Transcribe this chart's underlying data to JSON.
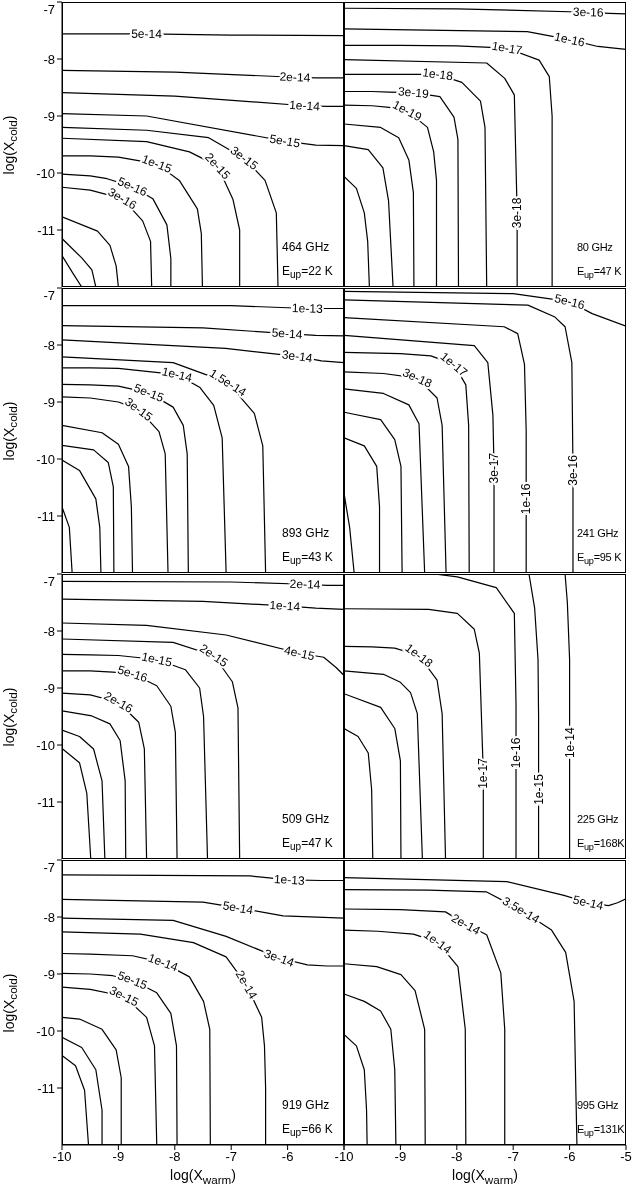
{
  "chart_data": [
    {
      "type": "line",
      "color": "#000000",
      "xlim": [
        -10,
        -5
      ],
      "ylim": [
        -12,
        -7
      ],
      "xticks": [
        -10,
        -9,
        -8,
        -7,
        -6,
        -5
      ],
      "yticks": [
        -11,
        -10,
        -9,
        -8,
        -7
      ],
      "tick_labels": "y",
      "ylabel": "log(X$_{cold}$)",
      "annotations": [
        "464 GHz",
        "E$_{up}$=22 K"
      ],
      "series": [
        {
          "name": "5e-14",
          "x": [
            -10,
            -9,
            -8.5,
            -7,
            -5
          ],
          "values": [
            -7.56,
            -7.56,
            -7.56,
            -7.58,
            -7.59
          ]
        },
        {
          "name": "2e-14",
          "x": [
            -10,
            -8,
            -5.87,
            -5.5,
            -5
          ],
          "values": [
            -8.2,
            -8.23,
            -8.32,
            -8.33,
            -8.33
          ]
        },
        {
          "name": "1e-14",
          "x": [
            -10,
            -8,
            -5.7,
            -5.3,
            -5
          ],
          "values": [
            -8.59,
            -8.65,
            -8.82,
            -8.83,
            -8.83
          ]
        },
        {
          "name": "5e-15",
          "x": [
            -10,
            -8.5,
            -6.05,
            -5.5,
            -5
          ],
          "values": [
            -8.96,
            -9.0,
            -9.44,
            -9.51,
            -9.52
          ]
        },
        {
          "name": "3e-15",
          "x": [
            -10,
            -8.5,
            -7.4,
            -6.77,
            -6.4,
            -6.2,
            -6.17
          ],
          "values": [
            -9.2,
            -9.25,
            -9.38,
            -9.74,
            -10.13,
            -10.7,
            -12
          ]
        },
        {
          "name": "2e-15",
          "x": [
            -10,
            -8.5,
            -7.74,
            -7.24,
            -6.97,
            -6.85,
            -6.85
          ],
          "values": [
            -9.39,
            -9.45,
            -9.63,
            -9.88,
            -10.46,
            -11.0,
            -12
          ]
        },
        {
          "name": "1e-15",
          "x": [
            -10,
            -9.5,
            -9,
            -8.32,
            -7.92,
            -7.6,
            -7.53,
            -7.51
          ],
          "values": [
            -9.7,
            -9.7,
            -9.72,
            -9.84,
            -10.13,
            -10.63,
            -11.06,
            -12
          ]
        },
        {
          "name": "5e-16",
          "x": [
            -10,
            -9.5,
            -9.2,
            -8.75,
            -8.39,
            -8.14,
            -8.07,
            -8.07
          ],
          "values": [
            -10.02,
            -10.05,
            -10.1,
            -10.24,
            -10.45,
            -10.91,
            -11.5,
            -12
          ]
        },
        {
          "name": "3e-16",
          "x": [
            -10,
            -9.5,
            -8.93,
            -8.57,
            -8.43,
            -8.41
          ],
          "values": [
            -10.25,
            -10.3,
            -10.45,
            -10.84,
            -11.2,
            -12
          ]
        },
        {
          "x": [
            -10,
            -9.37,
            -9.15,
            -9.04,
            -9.0
          ],
          "values": [
            -10.77,
            -11.02,
            -11.27,
            -11.63,
            -12
          ]
        },
        {
          "x": [
            -10,
            -9.65,
            -9.47,
            -9.4
          ],
          "values": [
            -11.15,
            -11.49,
            -11.7,
            -12
          ]
        },
        {
          "x": [
            -10,
            -9.8,
            -9.65
          ],
          "values": [
            -11.45,
            -11.77,
            -12
          ]
        }
      ]
    },
    {
      "type": "line",
      "color": "#000000",
      "xlim": [
        -10,
        -5
      ],
      "ylim": [
        -12,
        -7
      ],
      "xticks": [
        -10,
        -9,
        -8,
        -7,
        -6,
        -5
      ],
      "yticks": [
        -11,
        -10,
        -9,
        -8,
        -7
      ],
      "tick_labels": false,
      "annotations": [
        "80 GHz",
        "E$_{up}$=47 K"
      ],
      "series": [
        {
          "name": "3e-16",
          "x": [
            -10,
            -8,
            -5.67,
            -5.3,
            -5
          ],
          "values": [
            -7.11,
            -7.12,
            -7.18,
            -7.2,
            -7.21
          ]
        },
        {
          "name": "1e-16",
          "x": [
            -10,
            -6.75,
            -6.0,
            -5.5,
            -5
          ],
          "values": [
            -7.47,
            -7.52,
            -7.66,
            -7.78,
            -7.83
          ]
        },
        {
          "name": "1e-17",
          "x": [
            -10,
            -9,
            -8,
            -7.11,
            -6.54,
            -6.36,
            -6.31,
            -6.31
          ],
          "values": [
            -7.76,
            -7.76,
            -7.77,
            -7.81,
            -8.02,
            -8.31,
            -9,
            -12
          ]
        },
        {
          "name": "3e-18",
          "x": [
            -10,
            -7.47,
            -7.15,
            -6.98,
            -6.93,
            -6.93,
            -6.93,
            -6.93,
            -6.93
          ],
          "values": [
            -8.01,
            -8.07,
            -8.34,
            -8.63,
            -10.7,
            -11.1,
            -11.4,
            -11.7,
            -12
          ]
        },
        {
          "name": "1e-18",
          "x": [
            -10,
            -9.5,
            -9,
            -8.34,
            -7.91,
            -7.58,
            -7.5,
            -7.47
          ],
          "values": [
            -8.27,
            -8.27,
            -8.27,
            -8.27,
            -8.41,
            -8.74,
            -9.2,
            -12
          ]
        },
        {
          "name": "3e-19",
          "x": [
            -10,
            -9.5,
            -9.2,
            -8.77,
            -8.3,
            -8.05,
            -7.98,
            -7.97
          ],
          "values": [
            -8.57,
            -8.57,
            -8.58,
            -8.59,
            -8.66,
            -9.02,
            -9.41,
            -12
          ]
        },
        {
          "name": "1e-19",
          "x": [
            -10,
            -9.5,
            -9.2,
            -8.88,
            -8.52,
            -8.41,
            -8.36,
            -8.36
          ],
          "values": [
            -8.81,
            -8.82,
            -8.85,
            -8.91,
            -9.2,
            -9.63,
            -10.13,
            -12
          ]
        },
        {
          "x": [
            -10,
            -9.35,
            -9.03,
            -8.85,
            -8.77,
            -8.76
          ],
          "values": [
            -9.14,
            -9.2,
            -9.38,
            -9.77,
            -10.34,
            -12
          ]
        },
        {
          "x": [
            -10,
            -9.57,
            -9.31,
            -9.21,
            -9.13
          ],
          "values": [
            -9.52,
            -9.59,
            -9.91,
            -10.49,
            -12
          ]
        },
        {
          "x": [
            -10,
            -9.78,
            -9.64,
            -9.58,
            -9.55
          ],
          "values": [
            -10.06,
            -10.27,
            -10.7,
            -11.2,
            -12
          ]
        }
      ]
    },
    {
      "type": "line",
      "color": "#000000",
      "xlim": [
        -10,
        -5
      ],
      "ylim": [
        -12,
        -7
      ],
      "xticks": [
        -10,
        -9,
        -8,
        -7,
        -6,
        -5
      ],
      "yticks": [
        -11,
        -10,
        -9,
        -8,
        -7
      ],
      "tick_labels": "y",
      "ylabel": "log(X$_{cold}$)",
      "annotations": [
        "893 GHz",
        "E$_{up}$=43 K"
      ],
      "series": [
        {
          "name": "1e-13",
          "x": [
            -10,
            -7,
            -5.65,
            -5.3,
            -5
          ],
          "values": [
            -7.31,
            -7.31,
            -7.36,
            -7.36,
            -7.36
          ]
        },
        {
          "name": "5e-14",
          "x": [
            -10,
            -7.5,
            -6.01,
            -5.5,
            -5
          ],
          "values": [
            -7.66,
            -7.7,
            -7.8,
            -7.83,
            -7.84
          ]
        },
        {
          "name": "3e-14",
          "x": [
            -10,
            -7.1,
            -5.83,
            -5.4,
            -5
          ],
          "values": [
            -7.91,
            -8.06,
            -8.2,
            -8.28,
            -8.31
          ]
        },
        {
          "name": "1.5e-14",
          "x": [
            -10,
            -8.03,
            -7.06,
            -6.59,
            -6.44,
            -6.39
          ],
          "values": [
            -8.21,
            -8.31,
            -8.66,
            -9.2,
            -9.77,
            -12
          ]
        },
        {
          "name": "1e-14",
          "x": [
            -10,
            -9.5,
            -9,
            -7.96,
            -7.56,
            -7.31,
            -7.16,
            -7.09
          ],
          "values": [
            -8.4,
            -8.4,
            -8.41,
            -8.52,
            -8.74,
            -9.06,
            -9.63,
            -12
          ]
        },
        {
          "name": "5e-15",
          "x": [
            -10,
            -9.5,
            -9,
            -8.46,
            -8.03,
            -7.85,
            -7.78,
            -7.76
          ],
          "values": [
            -8.69,
            -8.7,
            -8.72,
            -8.84,
            -9.09,
            -9.41,
            -9.91,
            -12
          ]
        },
        {
          "name": "3e-15",
          "x": [
            -10,
            -9.5,
            -9,
            -8.64,
            -8.28,
            -8.17,
            -8.12
          ],
          "values": [
            -8.91,
            -8.93,
            -9.0,
            -9.13,
            -9.52,
            -9.91,
            -12
          ]
        },
        {
          "x": [
            -10,
            -9.29,
            -9.0,
            -8.82,
            -8.77,
            -8.75
          ],
          "values": [
            -9.41,
            -9.54,
            -9.74,
            -10.13,
            -10.84,
            -12
          ]
        },
        {
          "x": [
            -10,
            -9.44,
            -9.18,
            -9.09,
            -9.08
          ],
          "values": [
            -9.76,
            -9.84,
            -10.06,
            -10.49,
            -12
          ]
        },
        {
          "x": [
            -10,
            -9.69,
            -9.4,
            -9.33,
            -9.31
          ],
          "values": [
            -10.02,
            -10.2,
            -10.7,
            -11.2,
            -12
          ]
        },
        {
          "x": [
            -10,
            -9.87,
            -9.82
          ],
          "values": [
            -10.84,
            -11.2,
            -12
          ]
        }
      ]
    },
    {
      "type": "line",
      "color": "#000000",
      "xlim": [
        -10,
        -5
      ],
      "ylim": [
        -12,
        -7
      ],
      "xticks": [
        -10,
        -9,
        -8,
        -7,
        -6,
        -5
      ],
      "yticks": [
        -11,
        -10,
        -9,
        -8,
        -7
      ],
      "tick_labels": false,
      "annotations": [
        "241 GHz",
        "E$_{up}$=95 K"
      ],
      "series": [
        {
          "name": "5e-16",
          "x": [
            -10,
            -7.0,
            -6.0,
            -5.6,
            -5
          ],
          "values": [
            -7.06,
            -7.1,
            -7.24,
            -7.45,
            -7.67
          ]
        },
        {
          "name": "3e-16",
          "x": [
            -10,
            -6.74,
            -6.26,
            -6.08,
            -5.96,
            -5.94,
            -5.94,
            -5.94,
            -5.94,
            -5.94,
            -5.94
          ],
          "values": [
            -7.21,
            -7.3,
            -7.51,
            -7.68,
            -8.31,
            -10.2,
            -10.6,
            -11,
            -11.4,
            -11.7,
            -12
          ]
        },
        {
          "name": "1e-16",
          "x": [
            -10,
            -7.16,
            -6.92,
            -6.8,
            -6.77,
            -6.77,
            -6.77,
            -6.77,
            -6.77,
            -6.77,
            -6.77
          ],
          "values": [
            -7.52,
            -7.68,
            -7.8,
            -8.34,
            -9.5,
            -10.7,
            -11,
            -11.3,
            -11.55,
            -11.8,
            -12
          ]
        },
        {
          "name": "3e-17",
          "x": [
            -10,
            -7.69,
            -7.45,
            -7.36,
            -7.34,
            -7.34,
            -7.34,
            -7.34,
            -7.34
          ],
          "values": [
            -7.83,
            -8.01,
            -8.31,
            -9.23,
            -10.16,
            -10.6,
            -11.1,
            -11.5,
            -12
          ]
        },
        {
          "name": "1e-17",
          "x": [
            -10,
            -9,
            -8.46,
            -8.05,
            -7.84,
            -7.79,
            -7.78
          ],
          "values": [
            -8.13,
            -8.15,
            -8.19,
            -8.34,
            -8.7,
            -9.41,
            -12
          ]
        },
        {
          "name": "3e-18",
          "x": [
            -10,
            -9.3,
            -8.7,
            -8.35,
            -8.26,
            -8.19
          ],
          "values": [
            -8.47,
            -8.5,
            -8.58,
            -8.93,
            -9.41,
            -12
          ]
        },
        {
          "x": [
            -10,
            -9.3,
            -8.85,
            -8.67,
            -8.57
          ],
          "values": [
            -8.77,
            -8.85,
            -9.05,
            -9.38,
            -12
          ]
        },
        {
          "x": [
            -10,
            -9.35,
            -9.1,
            -8.99,
            -8.97
          ],
          "values": [
            -9.18,
            -9.31,
            -9.66,
            -10.13,
            -12
          ]
        },
        {
          "x": [
            -10,
            -9.64,
            -9.42,
            -9.37,
            -9.37
          ],
          "values": [
            -9.63,
            -9.77,
            -10.13,
            -10.84,
            -12
          ]
        },
        {
          "x": [
            -10,
            -9.9,
            -9.82
          ],
          "values": [
            -10.6,
            -11.2,
            -12
          ]
        }
      ]
    },
    {
      "type": "line",
      "color": "#000000",
      "xlim": [
        -10,
        -5
      ],
      "ylim": [
        -12,
        -7
      ],
      "xticks": [
        -10,
        -9,
        -8,
        -7,
        -6,
        -5
      ],
      "yticks": [
        -11,
        -10,
        -9,
        -8,
        -7
      ],
      "tick_labels": "y",
      "ylabel": "log(X$_{cold}$)",
      "annotations": [
        "509 GHz",
        "E$_{up}$=47 K"
      ],
      "series": [
        {
          "name": "2e-14",
          "x": [
            -10,
            -7,
            -5.69,
            -5.3,
            -5
          ],
          "values": [
            -7.13,
            -7.14,
            -7.18,
            -7.2,
            -7.2
          ]
        },
        {
          "name": "1e-14",
          "x": [
            -10,
            -7.5,
            -6.05,
            -5.5,
            -5
          ],
          "values": [
            -7.44,
            -7.48,
            -7.56,
            -7.6,
            -7.62
          ]
        },
        {
          "name": "4e-15",
          "x": [
            -10,
            -8.5,
            -7.09,
            -5.79,
            -5.36,
            -5.14,
            -5
          ],
          "values": [
            -7.86,
            -7.9,
            -8.07,
            -8.39,
            -8.46,
            -8.64,
            -8.78
          ]
        },
        {
          "name": "2e-15",
          "x": [
            -10,
            -8.03,
            -7.31,
            -6.98,
            -6.88,
            -6.85
          ],
          "values": [
            -8.14,
            -8.2,
            -8.43,
            -8.89,
            -9.35,
            -12
          ]
        },
        {
          "name": "1e-15",
          "x": [
            -10,
            -9.5,
            -9,
            -8.32,
            -7.81,
            -7.56,
            -7.49,
            -7.42
          ],
          "values": [
            -8.41,
            -8.42,
            -8.43,
            -8.5,
            -8.68,
            -9.0,
            -9.5,
            -12
          ]
        },
        {
          "name": "5e-16",
          "x": [
            -10,
            -9.5,
            -9.1,
            -8.75,
            -8.32,
            -8.07,
            -7.99,
            -7.96
          ],
          "values": [
            -8.7,
            -8.7,
            -8.72,
            -8.75,
            -8.96,
            -9.32,
            -9.78,
            -12
          ]
        },
        {
          "name": "2e-16",
          "x": [
            -10,
            -9.5,
            -9.0,
            -8.64,
            -8.54,
            -8.5
          ],
          "values": [
            -9.09,
            -9.12,
            -9.25,
            -9.6,
            -10.07,
            -12
          ]
        },
        {
          "x": [
            -10,
            -9.47,
            -9.15,
            -8.97,
            -8.88,
            -8.87
          ],
          "values": [
            -9.4,
            -9.49,
            -9.63,
            -9.92,
            -10.63,
            -12
          ]
        },
        {
          "x": [
            -10,
            -9.69,
            -9.44,
            -9.29,
            -9.24
          ],
          "values": [
            -9.74,
            -9.85,
            -10.07,
            -10.63,
            -12
          ]
        },
        {
          "x": [
            -10,
            -9.69,
            -9.56,
            -9.49
          ],
          "values": [
            -10.06,
            -10.31,
            -10.85,
            -12
          ]
        }
      ]
    },
    {
      "type": "line",
      "color": "#000000",
      "xlim": [
        -10,
        -5
      ],
      "ylim": [
        -12,
        -7
      ],
      "xticks": [
        -10,
        -9,
        -8,
        -7,
        -6,
        -5
      ],
      "yticks": [
        -11,
        -10,
        -9,
        -8,
        -7
      ],
      "tick_labels": false,
      "annotations": [
        "225 GHz",
        "E$_{up}$=168K"
      ],
      "series": [
        {
          "name": "1e-14",
          "x": [
            -6.08,
            -6.04,
            -6.0,
            -6.0,
            -6.0,
            -6.0,
            -6.0
          ],
          "values": [
            -7,
            -7.5,
            -8.5,
            -9.96,
            -10.6,
            -11.3,
            -12
          ]
        },
        {
          "name": "1e-15",
          "x": [
            -6.72,
            -6.62,
            -6.56,
            -6.55,
            -6.55,
            -6.55,
            -6.55,
            -6.55,
            -6.55
          ],
          "values": [
            -7,
            -7.6,
            -8.5,
            -9.5,
            -10.78,
            -11.1,
            -11.4,
            -11.7,
            -12
          ]
        },
        {
          "name": "1e-16",
          "x": [
            -8.4,
            -7.99,
            -7.3,
            -6.98,
            -6.95,
            -6.95,
            -6.95,
            -6.95,
            -6.95,
            -6.95,
            -6.95
          ],
          "values": [
            -7,
            -7.05,
            -7.24,
            -7.69,
            -9.29,
            -10.14,
            -10.6,
            -11,
            -11.4,
            -11.7,
            -12
          ]
        },
        {
          "name": "1e-17",
          "x": [
            -10,
            -8.5,
            -7.99,
            -7.69,
            -7.6,
            -7.53,
            -7.53,
            -7.53,
            -7.53,
            -7.53,
            -7.53
          ],
          "values": [
            -7.61,
            -7.62,
            -7.69,
            -7.97,
            -8.39,
            -10.5,
            -10.9,
            -11.2,
            -11.5,
            -11.8,
            -12
          ]
        },
        {
          "name": "1e-18",
          "x": [
            -10,
            -9.5,
            -9.1,
            -8.67,
            -8.35,
            -8.26,
            -8.2
          ],
          "values": [
            -8.27,
            -8.28,
            -8.3,
            -8.43,
            -8.86,
            -9.45,
            -12
          ]
        },
        {
          "x": [
            -10,
            -9.3,
            -9.0,
            -8.82,
            -8.7,
            -8.61
          ],
          "values": [
            -8.7,
            -8.76,
            -8.9,
            -9.08,
            -9.45,
            -12
          ]
        },
        {
          "x": [
            -10,
            -9.35,
            -9.1,
            -9.0,
            -8.99
          ],
          "values": [
            -9.1,
            -9.34,
            -9.71,
            -10.28,
            -12
          ]
        },
        {
          "x": [
            -10,
            -9.75,
            -9.57,
            -9.51,
            -9.49
          ],
          "values": [
            -9.71,
            -9.85,
            -10.14,
            -10.78,
            -12
          ]
        }
      ]
    },
    {
      "type": "line",
      "color": "#000000",
      "xlim": [
        -10,
        -5
      ],
      "ylim": [
        -12,
        -7
      ],
      "xticks": [
        -10,
        -9,
        -8,
        -7,
        -6,
        {
          "value": -5,
          "label": null
        }
      ],
      "yticks": [
        -11,
        -10,
        -9,
        -8,
        -7
      ],
      "xlabel": "log(X$_{warm}$)",
      "ylabel": "log(X$_{cold}$)",
      "annotations": [
        "919 GHz",
        "E$_{up}$=66 K"
      ],
      "series": [
        {
          "name": "1e-13",
          "x": [
            -10,
            -6.66,
            -5.97,
            -5.4,
            -5
          ],
          "values": [
            -7.26,
            -7.28,
            -7.35,
            -7.36,
            -7.36
          ]
        },
        {
          "name": "5e-14",
          "x": [
            -10,
            -7.5,
            -6.88,
            -6.08,
            -5
          ],
          "values": [
            -7.69,
            -7.74,
            -7.84,
            -7.98,
            -8.02
          ]
        },
        {
          "name": "3e-14",
          "x": [
            -10,
            -8.03,
            -7.09,
            -6.15,
            -5.65,
            -5.3,
            -5
          ],
          "values": [
            -8.02,
            -8.06,
            -8.34,
            -8.72,
            -8.84,
            -8.86,
            -8.86
          ]
        },
        {
          "name": "2e-14",
          "x": [
            -10,
            -8.61,
            -7.67,
            -7.09,
            -6.73,
            -6.46,
            -6.41,
            -6.39,
            -6.39
          ],
          "values": [
            -8.26,
            -8.3,
            -8.45,
            -8.7,
            -9.19,
            -9.76,
            -10.26,
            -11,
            -12
          ]
        },
        {
          "name": "1e-14",
          "x": [
            -10,
            -9.5,
            -8.75,
            -8.21,
            -7.74,
            -7.49,
            -7.38,
            -7.37
          ],
          "values": [
            -8.64,
            -8.65,
            -8.68,
            -8.8,
            -9.05,
            -9.48,
            -9.97,
            -12
          ]
        },
        {
          "name": "5e-15",
          "x": [
            -10,
            -9.5,
            -9.1,
            -8.75,
            -8.32,
            -8.07,
            -7.97,
            -7.96
          ],
          "values": [
            -8.99,
            -9.0,
            -9.03,
            -9.11,
            -9.33,
            -9.69,
            -10.26,
            -12
          ]
        },
        {
          "name": "3e-15",
          "x": [
            -10,
            -9.5,
            -8.9,
            -8.5,
            -8.36,
            -8.32
          ],
          "values": [
            -9.23,
            -9.27,
            -9.39,
            -9.76,
            -10.26,
            -12
          ]
        },
        {
          "x": [
            -10,
            -9.69,
            -9.29,
            -9.04,
            -8.95,
            -8.95
          ],
          "values": [
            -9.76,
            -9.79,
            -9.97,
            -10.33,
            -10.82,
            -12
          ]
        },
        {
          "x": [
            -10,
            -9.65,
            -9.4,
            -9.29,
            -9.29
          ],
          "values": [
            -10.11,
            -10.29,
            -10.68,
            -11.39,
            -12
          ]
        },
        {
          "x": [
            -10,
            -9.76,
            -9.6,
            -9.53
          ],
          "values": [
            -10.43,
            -10.61,
            -11.04,
            -12
          ]
        }
      ]
    },
    {
      "type": "line",
      "color": "#000000",
      "xlim": [
        -10,
        -5
      ],
      "ylim": [
        -12,
        -7
      ],
      "xticks": [
        -10,
        -9,
        -8,
        -7,
        -6,
        -5
      ],
      "yticks": [
        -11,
        -10,
        -9,
        -8,
        -7
      ],
      "tick_labels": "x",
      "xlabel": "log(X$_{warm}$)",
      "annotations": [
        "995 GHz",
        "E$_{up}$=131K"
      ],
      "series": [
        {
          "name": "5e-14",
          "x": [
            -10,
            -7.11,
            -6.1,
            -5.67,
            -5.31,
            -5.15,
            -5
          ],
          "values": [
            -7.31,
            -7.38,
            -7.62,
            -7.75,
            -7.8,
            -7.75,
            -7.68
          ]
        },
        {
          "name": "3.5e-14",
          "x": [
            -10,
            -8.5,
            -7.47,
            -6.86,
            -6.32,
            -6.07,
            -5.92,
            -5.87
          ],
          "values": [
            -7.52,
            -7.53,
            -7.56,
            -7.88,
            -8.23,
            -8.62,
            -9.48,
            -12
          ]
        },
        {
          "name": "2e-14",
          "x": [
            -10,
            -9,
            -8.2,
            -7.84,
            -7.47,
            -7.22,
            -7.15,
            -7.15
          ],
          "values": [
            -7.86,
            -7.87,
            -7.91,
            -8.13,
            -8.31,
            -8.98,
            -9.97,
            -12
          ]
        },
        {
          "name": "1e-14",
          "x": [
            -10,
            -9.4,
            -8.77,
            -8.34,
            -7.98,
            -7.85,
            -7.84
          ],
          "values": [
            -8.23,
            -8.25,
            -8.3,
            -8.44,
            -8.87,
            -9.97,
            -12
          ]
        },
        {
          "x": [
            -10,
            -9.42,
            -8.99,
            -8.74,
            -8.57,
            -8.56
          ],
          "values": [
            -8.82,
            -8.87,
            -9.01,
            -9.29,
            -9.97,
            -12
          ]
        },
        {
          "x": [
            -10,
            -9.64,
            -9.35,
            -9.17,
            -9.1,
            -9.08
          ],
          "values": [
            -9.35,
            -9.48,
            -9.65,
            -9.97,
            -10.68,
            -12
          ]
        },
        {
          "x": [
            -10,
            -9.78,
            -9.64,
            -9.6,
            -9.59
          ],
          "values": [
            -10.06,
            -10.26,
            -10.68,
            -11.39,
            -12
          ]
        }
      ]
    }
  ]
}
